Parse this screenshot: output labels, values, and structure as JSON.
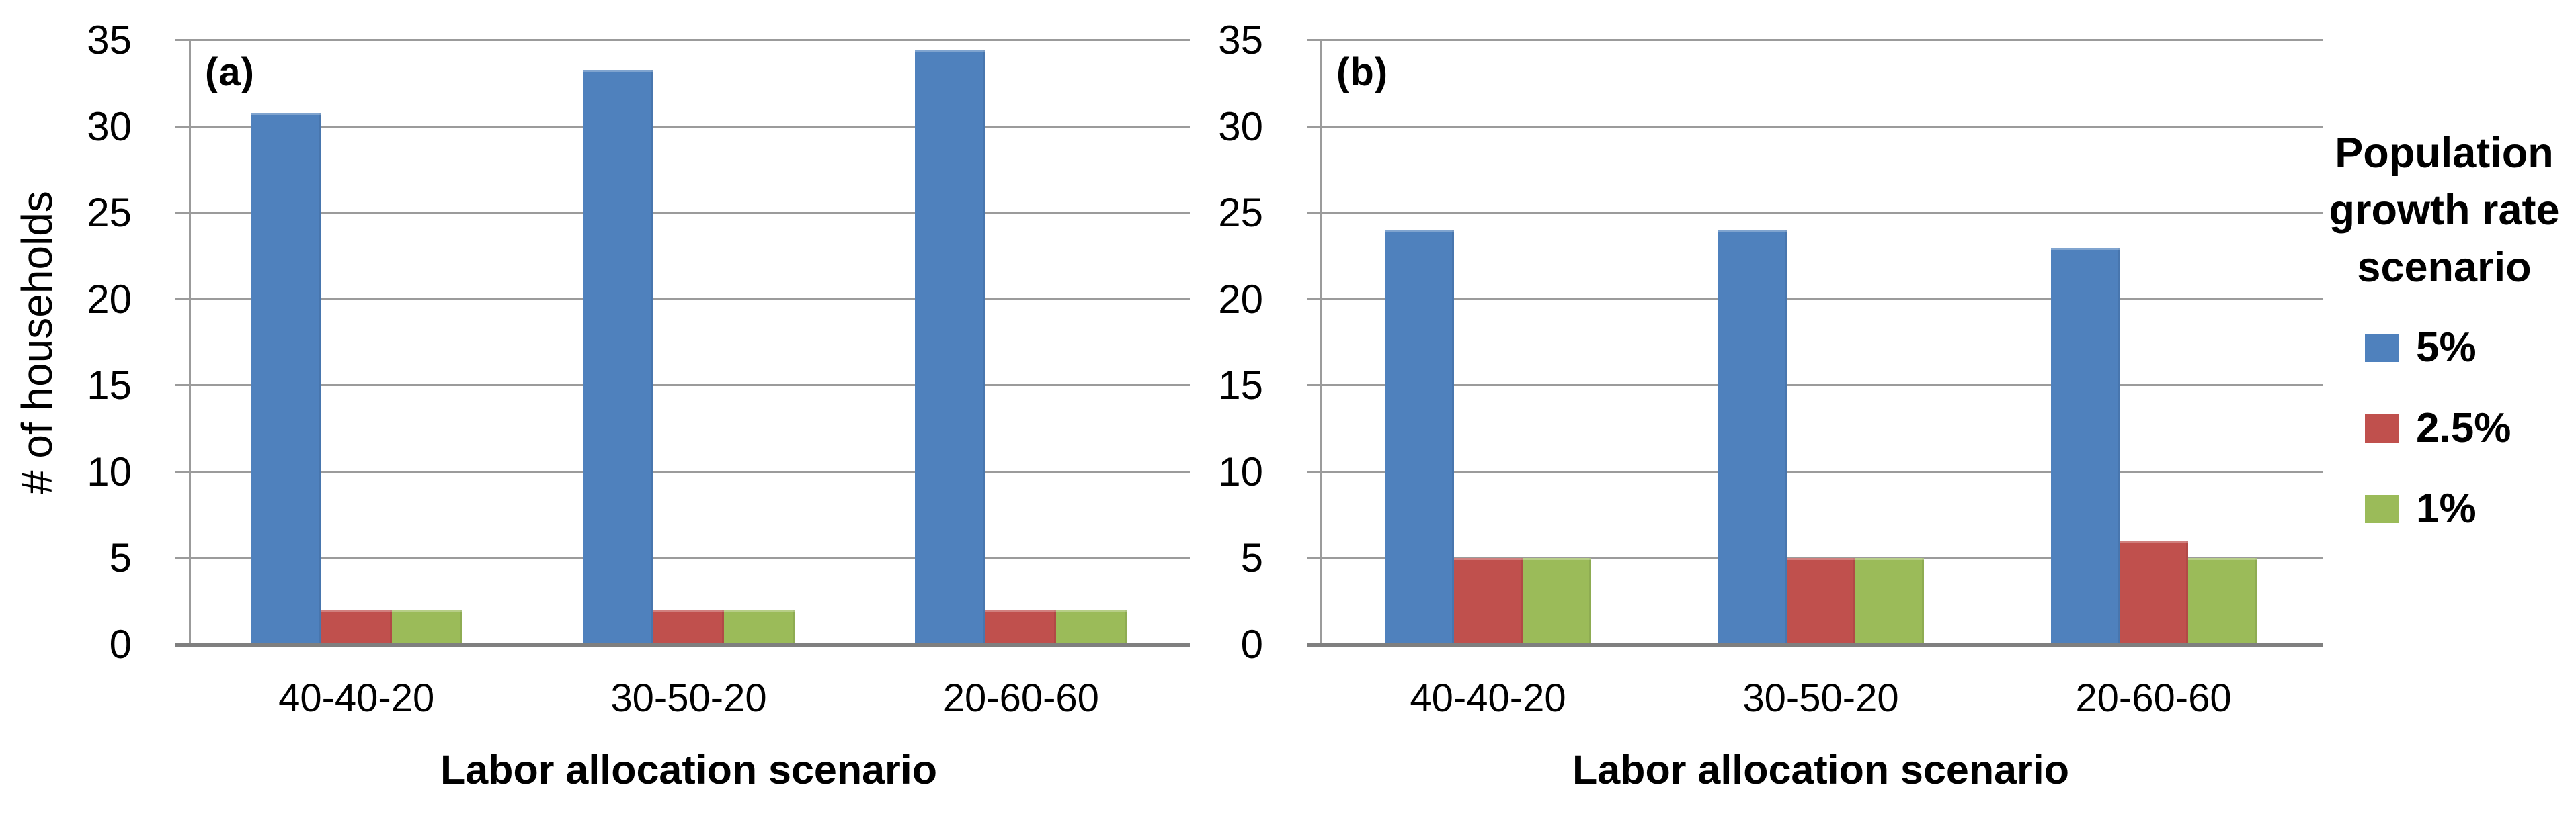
{
  "figure": {
    "background": "#ffffff",
    "gridline_color": "#9b9b9b",
    "axis_line_color": "#7f7f7f"
  },
  "chart_data": [
    {
      "type": "bar",
      "panel_label": "(a)",
      "categories": [
        "40-40-20",
        "30-50-20",
        "20-60-60"
      ],
      "series": [
        {
          "name": "5%",
          "color": "#4F81BD",
          "values": [
            30.8,
            33.3,
            34.4
          ]
        },
        {
          "name": "2.5%",
          "color": "#C0504D",
          "values": [
            2,
            2,
            2
          ]
        },
        {
          "name": "1%",
          "color": "#9BBB59",
          "values": [
            2,
            2,
            2
          ]
        }
      ],
      "xlabel": "Labor allocation scenario",
      "ylabel": "# of households",
      "ylim": [
        0,
        35
      ],
      "yticks": [
        35,
        30,
        25,
        20,
        15,
        10,
        5,
        0
      ],
      "grid": true,
      "legend_position": "none"
    },
    {
      "type": "bar",
      "panel_label": "(b)",
      "categories": [
        "40-40-20",
        "30-50-20",
        "20-60-60"
      ],
      "series": [
        {
          "name": "5%",
          "color": "#4F81BD",
          "values": [
            24,
            24,
            23
          ]
        },
        {
          "name": "2.5%",
          "color": "#C0504D",
          "values": [
            5,
            5,
            6
          ]
        },
        {
          "name": "1%",
          "color": "#9BBB59",
          "values": [
            5,
            5,
            5
          ]
        }
      ],
      "xlabel": "Labor allocation scenario",
      "ylabel": "",
      "ylim": [
        0,
        35
      ],
      "yticks": [
        35,
        30,
        25,
        20,
        15,
        10,
        5,
        0
      ],
      "grid": true,
      "legend_position": "right"
    }
  ],
  "legend": {
    "title_lines": [
      "Population",
      "growth rate",
      "scenario"
    ],
    "entries": [
      {
        "label": "5%",
        "color": "#4F81BD"
      },
      {
        "label": "2.5%",
        "color": "#C0504D"
      },
      {
        "label": "1%",
        "color": "#9BBB59"
      }
    ]
  }
}
